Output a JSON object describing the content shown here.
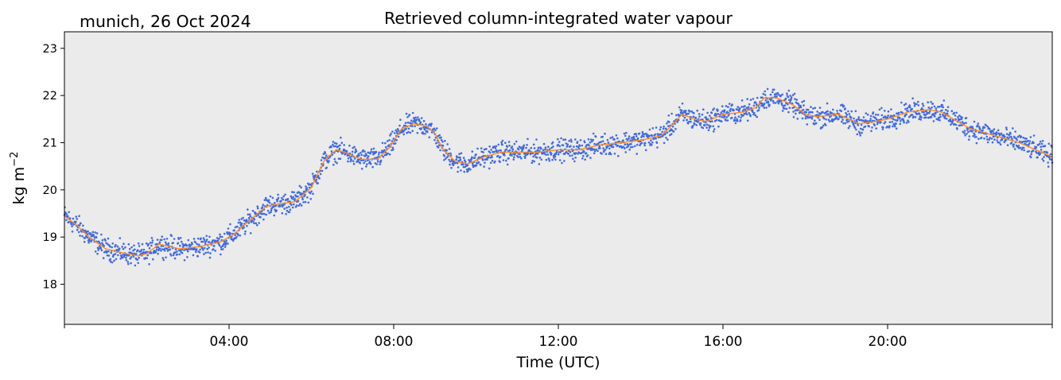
{
  "chart_data": {
    "type": "line",
    "title": "Retrieved column-integrated water vapour",
    "subtitle": "munich, 26 Oct 2024",
    "xlabel": "Time (UTC)",
    "ylabel": "kg m",
    "ylabel_superscript": "−2",
    "xlim": [
      0,
      24
    ],
    "ylim": [
      17.15,
      23.35
    ],
    "yticks": [
      18,
      19,
      20,
      21,
      22,
      23
    ],
    "xticks": [
      {
        "hour": 4,
        "label": "04:00"
      },
      {
        "hour": 8,
        "label": "08:00"
      },
      {
        "hour": 12,
        "label": "12:00"
      },
      {
        "hour": 16,
        "label": "16:00"
      },
      {
        "hour": 20,
        "label": "20:00"
      }
    ],
    "minor_xticks_hours": [
      0,
      24
    ],
    "background_color": "#ebebeb",
    "grid": false,
    "series": [
      {
        "kind": "scatter",
        "color": "#4169e1",
        "x": [
          0.0,
          0.3,
          0.6,
          1.0,
          1.5,
          1.8,
          2.0,
          2.3,
          2.8,
          3.3,
          3.8,
          4.1,
          4.5,
          4.9,
          5.2,
          5.6,
          6.0,
          6.3,
          6.6,
          6.8,
          7.2,
          7.6,
          7.9,
          8.2,
          8.5,
          8.8,
          9.0,
          9.2,
          9.5,
          9.8,
          10.2,
          10.6,
          11.0,
          11.5,
          12.0,
          12.5,
          13.0,
          13.5,
          14.0,
          14.5,
          14.8,
          15.0,
          15.3,
          15.6,
          16.0,
          16.5,
          16.8,
          17.0,
          17.3,
          17.7,
          18.0,
          18.3,
          18.8,
          19.3,
          19.7,
          20.0,
          20.5,
          21.0,
          21.3,
          21.6,
          22.0,
          22.4,
          22.8,
          23.2,
          23.6,
          24.0
        ],
        "y": [
          19.45,
          19.25,
          19.0,
          18.75,
          18.65,
          18.6,
          18.65,
          18.85,
          18.75,
          18.8,
          18.9,
          19.05,
          19.35,
          19.65,
          19.7,
          19.75,
          20.05,
          20.6,
          20.85,
          20.8,
          20.65,
          20.65,
          20.9,
          21.3,
          21.4,
          21.35,
          21.2,
          20.85,
          20.6,
          20.55,
          20.7,
          20.8,
          20.8,
          20.8,
          20.85,
          20.85,
          20.95,
          21.0,
          21.05,
          21.15,
          21.4,
          21.6,
          21.5,
          21.45,
          21.6,
          21.65,
          21.75,
          21.95,
          21.95,
          21.8,
          21.6,
          21.55,
          21.6,
          21.4,
          21.45,
          21.5,
          21.65,
          21.7,
          21.65,
          21.5,
          21.3,
          21.2,
          21.1,
          21.0,
          20.85,
          20.7
        ]
      },
      {
        "kind": "line",
        "color": "#ff8c1a",
        "x": [
          0.0,
          0.3,
          0.6,
          1.0,
          1.5,
          1.8,
          2.0,
          2.3,
          2.8,
          3.3,
          3.8,
          4.1,
          4.5,
          4.9,
          5.2,
          5.6,
          6.0,
          6.3,
          6.6,
          6.8,
          7.2,
          7.6,
          7.9,
          8.2,
          8.5,
          8.8,
          9.0,
          9.2,
          9.5,
          9.8,
          10.2,
          10.6,
          11.0,
          11.5,
          12.0,
          12.5,
          13.0,
          13.5,
          14.0,
          14.5,
          14.8,
          15.0,
          15.3,
          15.6,
          16.0,
          16.5,
          16.8,
          17.0,
          17.3,
          17.7,
          18.0,
          18.3,
          18.8,
          19.3,
          19.7,
          20.0,
          20.5,
          21.0,
          21.3,
          21.6,
          22.0,
          22.4,
          22.8,
          23.2,
          23.6,
          24.0
        ],
        "y": [
          19.45,
          19.25,
          19.0,
          18.75,
          18.65,
          18.6,
          18.65,
          18.85,
          18.75,
          18.8,
          18.9,
          19.05,
          19.35,
          19.65,
          19.7,
          19.75,
          20.05,
          20.6,
          20.85,
          20.8,
          20.65,
          20.65,
          20.9,
          21.3,
          21.4,
          21.35,
          21.2,
          20.85,
          20.6,
          20.55,
          20.7,
          20.8,
          20.8,
          20.8,
          20.85,
          20.85,
          20.95,
          21.0,
          21.05,
          21.15,
          21.4,
          21.6,
          21.5,
          21.45,
          21.6,
          21.65,
          21.75,
          21.95,
          21.95,
          21.8,
          21.6,
          21.55,
          21.6,
          21.4,
          21.45,
          21.5,
          21.65,
          21.7,
          21.65,
          21.5,
          21.3,
          21.2,
          21.1,
          21.0,
          20.85,
          20.7
        ]
      }
    ]
  }
}
